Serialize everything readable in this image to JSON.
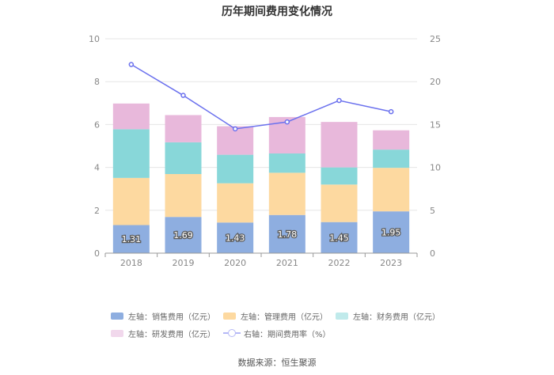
{
  "chart_data": {
    "type": "bar",
    "title": "历年期间费用变化情况",
    "categories": [
      "2018",
      "2019",
      "2020",
      "2021",
      "2022",
      "2023"
    ],
    "left_axis": {
      "ylim": [
        0,
        10
      ],
      "ticks": [
        "0",
        "2",
        "4",
        "6",
        "8",
        "10"
      ]
    },
    "right_axis": {
      "ylim": [
        0,
        25
      ],
      "ticks": [
        "0",
        "5",
        "10",
        "15",
        "20",
        "25"
      ]
    },
    "stacked": true,
    "grid": true,
    "legend_position": "bottom",
    "series": [
      {
        "name": "左轴：销售费用（亿元）",
        "color": "#8eaee0",
        "values": [
          1.31,
          1.69,
          1.43,
          1.78,
          1.45,
          1.95
        ],
        "labels": [
          "1.31",
          "1.69",
          "1.43",
          "1.78",
          "1.45",
          "1.95"
        ]
      },
      {
        "name": "左轴：管理费用（亿元）",
        "color": "#fdd9a0",
        "values": [
          2.2,
          2.0,
          1.83,
          1.97,
          1.75,
          2.03
        ]
      },
      {
        "name": "左轴：财务费用（亿元）",
        "color": "#88d7d9",
        "values": [
          2.27,
          1.48,
          1.33,
          0.9,
          0.8,
          0.85
        ]
      },
      {
        "name": "左轴：研发费用（亿元）",
        "color": "#e8b8db",
        "values": [
          1.2,
          1.27,
          1.33,
          1.7,
          2.12,
          0.9
        ]
      }
    ],
    "line_series": {
      "name": "右轴：期间费用率（%）",
      "color": "#6b71ee",
      "values": [
        22.0,
        18.4,
        14.5,
        15.3,
        17.8,
        16.5
      ]
    }
  },
  "source_text": "数据来源：恒生聚源"
}
